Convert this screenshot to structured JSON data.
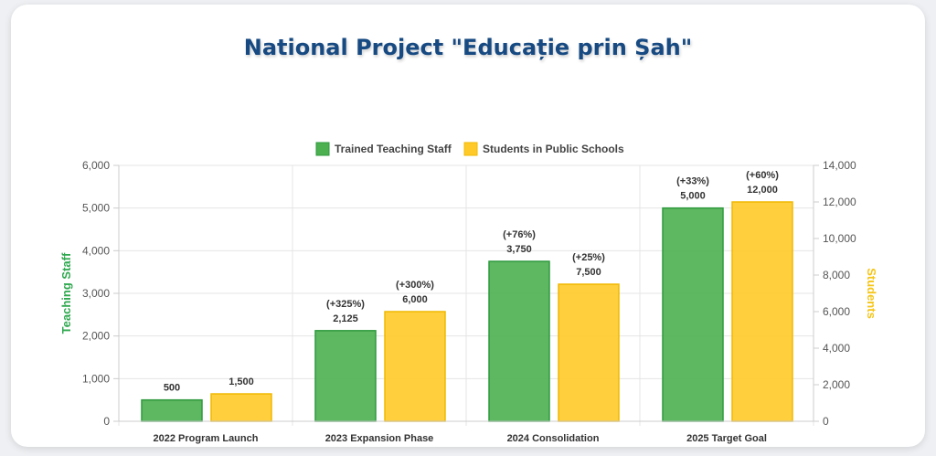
{
  "chart_data": {
    "type": "bar",
    "title": "National Project \"Educație prin Șah\"",
    "categories": [
      "2022 Program Launch",
      "2023 Expansion Phase",
      "2024 Consolidation",
      "2025 Target Goal"
    ],
    "series": [
      {
        "name": "Trained Teaching Staff",
        "axis": "left",
        "color": "#4caf50",
        "values": [
          500,
          2125,
          3750,
          5000
        ],
        "labels": [
          "500",
          "2,125",
          "3,750",
          "5,000"
        ],
        "growth": [
          "",
          "(+325%)",
          "(+76%)",
          "(+33%)"
        ]
      },
      {
        "name": "Students in Public Schools",
        "axis": "right",
        "color": "#ffca28",
        "values": [
          1500,
          6000,
          7500,
          12000
        ],
        "labels": [
          "1,500",
          "6,000",
          "7,500",
          "12,000"
        ],
        "growth": [
          "",
          "(+300%)",
          "(+25%)",
          "(+60%)"
        ]
      }
    ],
    "ylabel": "Teaching Staff",
    "ylabel_color": "#2fa84f",
    "y2label": "Students",
    "y2label_color": "#f5c518",
    "ylim": [
      0,
      6000
    ],
    "y2lim": [
      0,
      14000
    ],
    "yticks": [
      "0",
      "1,000",
      "2,000",
      "3,000",
      "4,000",
      "5,000",
      "6,000"
    ],
    "y2ticks": [
      "0",
      "2,000",
      "4,000",
      "6,000",
      "8,000",
      "10,000",
      "12,000",
      "14,000"
    ],
    "legend": "top",
    "grid": true
  }
}
